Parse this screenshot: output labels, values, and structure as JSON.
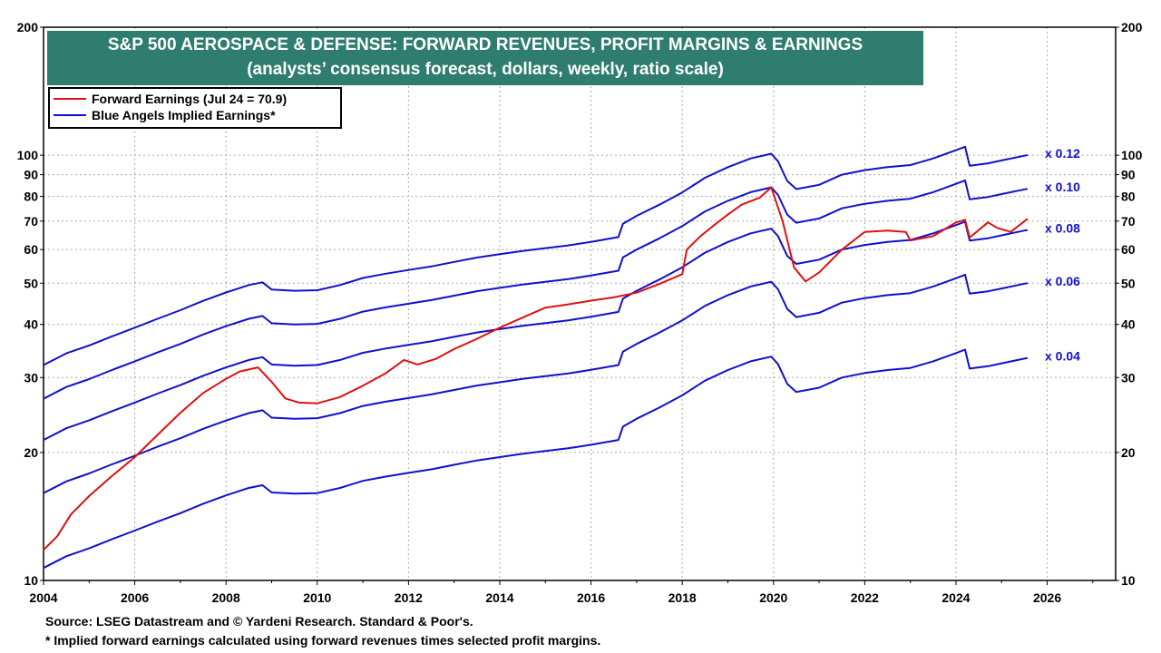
{
  "title": {
    "line1": "S&P 500 AEROSPACE & DEFENSE: FORWARD REVENUES, PROFIT MARGINS & EARNINGS",
    "line2": "(analysts’ consensus forecast, dollars, weekly, ratio scale)"
  },
  "legend": {
    "red_label": "Forward Earnings (Jul 24 = 70.9)",
    "blue_label": "Blue Angels Implied Earnings*"
  },
  "footer": {
    "source": "Source: LSEG Datastream and © Yardeni Research. Standard & Poor's.",
    "note": "* Implied forward earnings calculated using forward revenues times selected profit margins."
  },
  "colors": {
    "red": "#e01010",
    "blue": "#1010cc",
    "title_bg": "#2e7d6e",
    "grid": "#aaaaaa"
  },
  "chart_data": {
    "type": "line",
    "y_scale": "log",
    "ylim": [
      10,
      200
    ],
    "xlim": [
      2004,
      2027.5
    ],
    "grid": true,
    "legend_position": "top-left",
    "x_ticks": [
      2004,
      2006,
      2008,
      2010,
      2012,
      2014,
      2016,
      2018,
      2020,
      2022,
      2024,
      2026
    ],
    "y_ticks": [
      10,
      20,
      30,
      40,
      50,
      60,
      70,
      80,
      90,
      100,
      200
    ],
    "forward_earnings": {
      "name": "Forward Earnings (Jul 24 = 70.9)",
      "points": [
        [
          2004.0,
          11.8
        ],
        [
          2004.3,
          12.7
        ],
        [
          2004.6,
          14.3
        ],
        [
          2005.0,
          15.8
        ],
        [
          2005.5,
          17.6
        ],
        [
          2006.0,
          19.5
        ],
        [
          2006.5,
          22.0
        ],
        [
          2007.0,
          24.8
        ],
        [
          2007.5,
          27.6
        ],
        [
          2008.0,
          29.8
        ],
        [
          2008.3,
          31.0
        ],
        [
          2008.7,
          31.7
        ],
        [
          2009.0,
          29.3
        ],
        [
          2009.3,
          26.8
        ],
        [
          2009.6,
          26.2
        ],
        [
          2010.0,
          26.1
        ],
        [
          2010.5,
          27.0
        ],
        [
          2011.0,
          28.7
        ],
        [
          2011.5,
          30.7
        ],
        [
          2011.9,
          33.0
        ],
        [
          2012.2,
          32.2
        ],
        [
          2012.6,
          33.2
        ],
        [
          2013.0,
          35.0
        ],
        [
          2013.5,
          37.0
        ],
        [
          2014.0,
          39.3
        ],
        [
          2014.5,
          41.5
        ],
        [
          2015.0,
          43.8
        ],
        [
          2015.5,
          44.6
        ],
        [
          2016.0,
          45.5
        ],
        [
          2016.5,
          46.3
        ],
        [
          2017.0,
          47.5
        ],
        [
          2017.5,
          49.8
        ],
        [
          2018.0,
          52.5
        ],
        [
          2018.1,
          60.0
        ],
        [
          2018.4,
          64.5
        ],
        [
          2018.7,
          68.5
        ],
        [
          2019.0,
          72.5
        ],
        [
          2019.3,
          76.5
        ],
        [
          2019.7,
          79.5
        ],
        [
          2019.95,
          84.0
        ],
        [
          2020.2,
          70.0
        ],
        [
          2020.45,
          54.5
        ],
        [
          2020.7,
          50.5
        ],
        [
          2021.0,
          53.0
        ],
        [
          2021.5,
          60.0
        ],
        [
          2022.0,
          66.0
        ],
        [
          2022.5,
          66.5
        ],
        [
          2022.9,
          66.0
        ],
        [
          2023.0,
          63.0
        ],
        [
          2023.5,
          64.5
        ],
        [
          2024.0,
          69.5
        ],
        [
          2024.2,
          70.5
        ],
        [
          2024.3,
          64.0
        ],
        [
          2024.7,
          69.5
        ],
        [
          2024.9,
          67.5
        ],
        [
          2025.2,
          66.0
        ],
        [
          2025.57,
          70.9
        ]
      ]
    },
    "implied_earnings": {
      "name": "Blue Angels Implied Earnings*",
      "base_margin": 0.08,
      "multipliers": [
        {
          "label": "x 0.12",
          "margin": 0.12
        },
        {
          "label": "x 0.10",
          "margin": 0.1
        },
        {
          "label": "x 0.08",
          "margin": 0.08
        },
        {
          "label": "x 0.06",
          "margin": 0.06
        },
        {
          "label": "x 0.04",
          "margin": 0.04
        }
      ],
      "points_at_0_08": [
        [
          2004.0,
          21.4
        ],
        [
          2004.5,
          22.8
        ],
        [
          2005.0,
          23.8
        ],
        [
          2005.5,
          25.0
        ],
        [
          2006.0,
          26.2
        ],
        [
          2006.5,
          27.5
        ],
        [
          2007.0,
          28.8
        ],
        [
          2007.5,
          30.3
        ],
        [
          2008.0,
          31.7
        ],
        [
          2008.5,
          33.0
        ],
        [
          2008.8,
          33.5
        ],
        [
          2009.0,
          32.2
        ],
        [
          2009.5,
          32.0
        ],
        [
          2010.0,
          32.1
        ],
        [
          2010.5,
          33.0
        ],
        [
          2011.0,
          34.3
        ],
        [
          2011.5,
          35.1
        ],
        [
          2012.0,
          35.8
        ],
        [
          2012.5,
          36.5
        ],
        [
          2013.0,
          37.4
        ],
        [
          2013.5,
          38.3
        ],
        [
          2014.0,
          39.0
        ],
        [
          2014.5,
          39.7
        ],
        [
          2015.0,
          40.3
        ],
        [
          2015.5,
          40.9
        ],
        [
          2016.0,
          41.7
        ],
        [
          2016.6,
          42.8
        ],
        [
          2016.7,
          46.0
        ],
        [
          2017.0,
          48.0
        ],
        [
          2017.5,
          51.0
        ],
        [
          2018.0,
          54.5
        ],
        [
          2018.5,
          59.0
        ],
        [
          2019.0,
          62.5
        ],
        [
          2019.5,
          65.5
        ],
        [
          2019.95,
          67.2
        ],
        [
          2020.1,
          64.5
        ],
        [
          2020.3,
          58.0
        ],
        [
          2020.5,
          55.5
        ],
        [
          2021.0,
          56.8
        ],
        [
          2021.5,
          60.0
        ],
        [
          2022.0,
          61.5
        ],
        [
          2022.5,
          62.5
        ],
        [
          2023.0,
          63.2
        ],
        [
          2023.5,
          65.5
        ],
        [
          2024.0,
          68.5
        ],
        [
          2024.2,
          69.8
        ],
        [
          2024.3,
          63.0
        ],
        [
          2024.7,
          63.8
        ],
        [
          2025.0,
          64.8
        ],
        [
          2025.5,
          66.5
        ],
        [
          2025.57,
          66.7
        ]
      ]
    }
  }
}
